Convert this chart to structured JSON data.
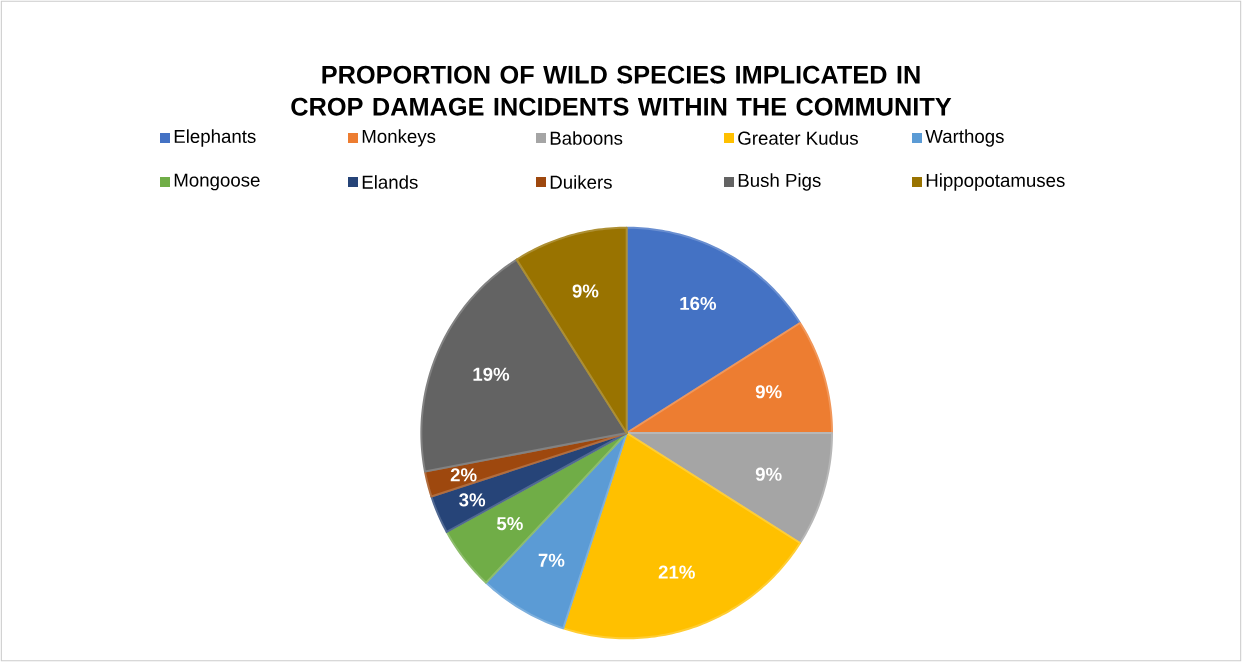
{
  "chart_data": {
    "type": "pie",
    "title": "PROPORTION OF WILD SPECIES IMPLICATED IN CROP DAMAGE INCIDENTS WITHIN THE COMMUNITY",
    "categories": [
      "Elephants",
      "Monkeys",
      "Baboons",
      "Greater Kudus",
      "Warthogs",
      "Mongoose",
      "Elands",
      "Duikers",
      "Bush Pigs",
      "Hippopotamuses"
    ],
    "values": [
      16,
      9,
      9,
      21,
      7,
      5,
      3,
      2,
      19,
      9
    ],
    "value_labels": [
      "16%",
      "9%",
      "9%",
      "21%",
      "7%",
      "5%",
      "3%",
      "2%",
      "19%",
      "9%"
    ],
    "colors": [
      "#4472c4",
      "#ed7d31",
      "#a5a5a5",
      "#ffc000",
      "#5b9bd5",
      "#70ad47",
      "#264478",
      "#9e480e",
      "#636363",
      "#997300"
    ],
    "legend": "top"
  }
}
